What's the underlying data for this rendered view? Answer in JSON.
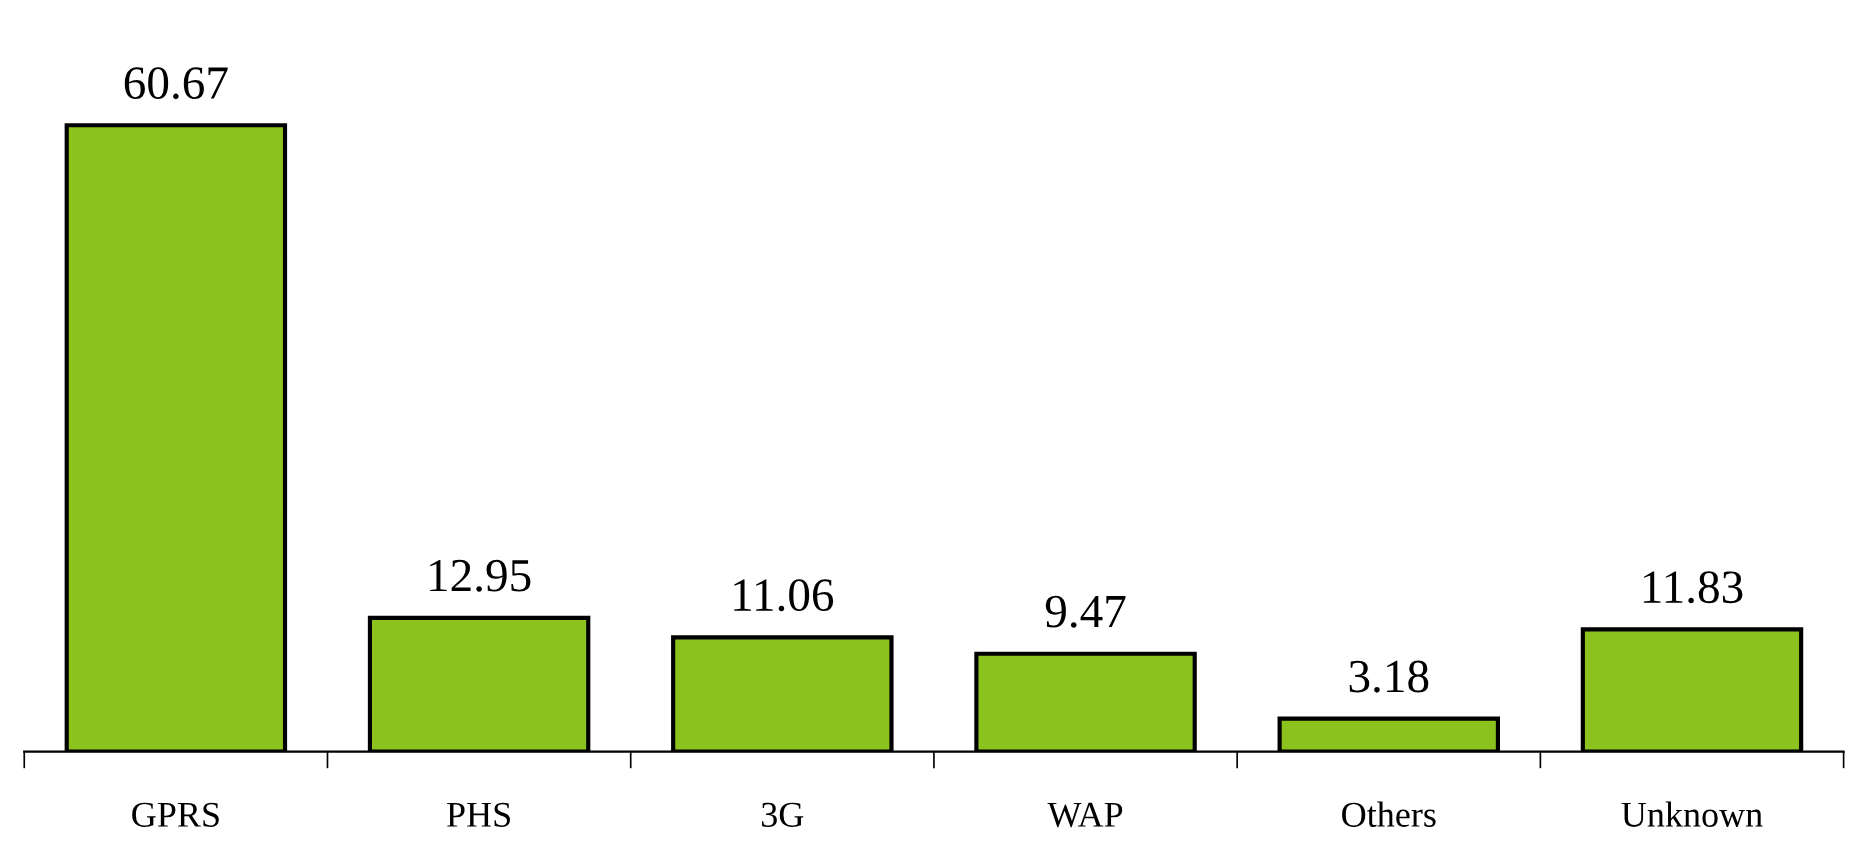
{
  "chart_data": {
    "type": "bar",
    "categories": [
      "GPRS",
      "PHS",
      "3G",
      "WAP",
      "Others",
      "Unknown"
    ],
    "values": [
      60.67,
      12.95,
      11.06,
      9.47,
      3.18,
      11.83
    ],
    "color": "#8cc21e",
    "data_labels": true,
    "grid": false,
    "legend": false
  }
}
